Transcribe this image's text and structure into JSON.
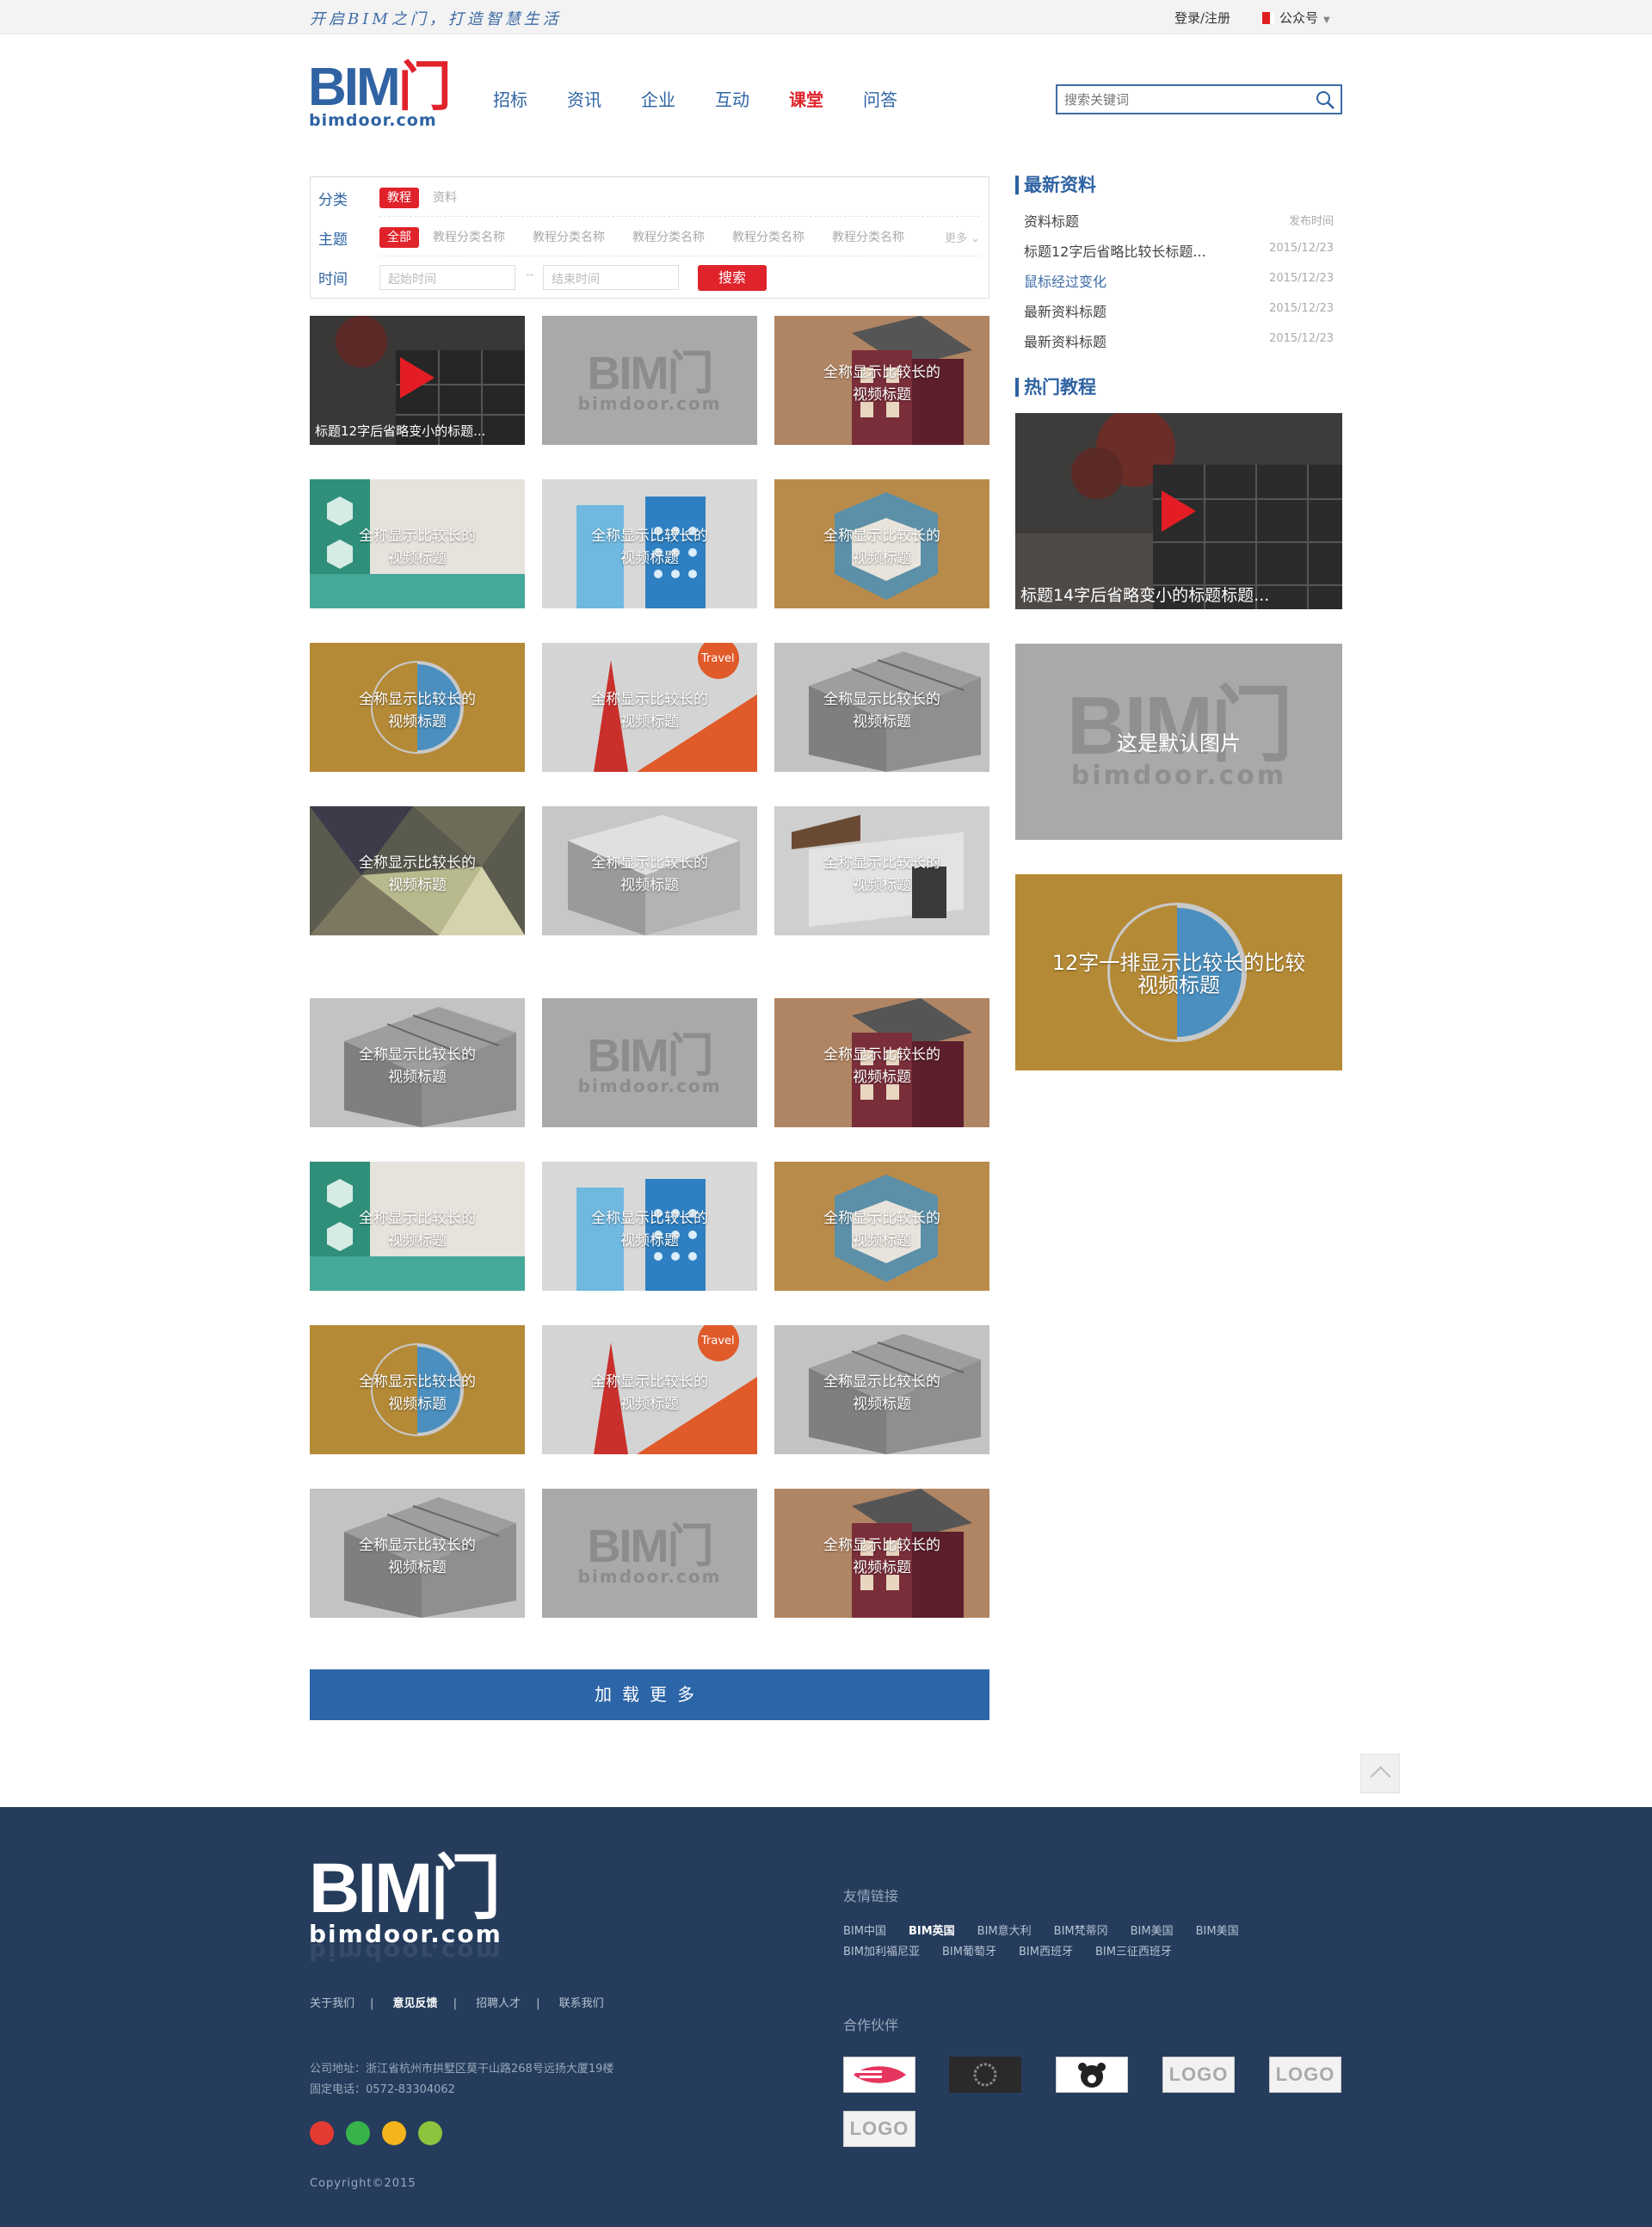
{
  "topbar": {
    "slogan": "开启BIM之门，打造智慧生活",
    "login": "登录/注册",
    "wechat": "公众号"
  },
  "logo": {
    "main": "BIM",
    "men": "门",
    "sub": "bimdoor.com"
  },
  "nav": [
    "招标",
    "资讯",
    "企业",
    "互动",
    "课堂",
    "问答"
  ],
  "nav_active": "课堂",
  "search": {
    "placeholder": "搜索关键词"
  },
  "filter": {
    "category_label": "分类",
    "categories": [
      "教程",
      "资料"
    ],
    "topic_label": "主题",
    "topics": [
      "全部",
      "教程分类名称",
      "教程分类名称",
      "教程分类名称",
      "教程分类名称",
      "教程分类名称"
    ],
    "more": "更多",
    "time_label": "时间",
    "start_placeholder": "起始时间",
    "dash": "--",
    "end_placeholder": "结束时间",
    "search_btn": "搜索"
  },
  "tiles": [
    {
      "kind": "video",
      "title": "标题12字后省略变小的标题..."
    },
    {
      "kind": "default",
      "title": ""
    },
    {
      "kind": "house",
      "title": "全称显示比较长的视频标题"
    },
    {
      "kind": "green",
      "title": "全称显示比较长的视频标题"
    },
    {
      "kind": "blue",
      "title": "全称显示比较长的视频标题"
    },
    {
      "kind": "room",
      "title": "全称显示比较长的视频标题"
    },
    {
      "kind": "yellow",
      "title": "全称显示比较长的视频标题"
    },
    {
      "kind": "travel",
      "title": "全称显示比较长的视频标题",
      "tag": "Travel"
    },
    {
      "kind": "grey",
      "title": "全称显示比较长的视频标题"
    },
    {
      "kind": "poly",
      "title": "全称显示比较长的视频标题"
    },
    {
      "kind": "grey2",
      "title": "全称显示比较长的视频标题"
    },
    {
      "kind": "grey3",
      "title": "全称显示比较长的视频标题"
    },
    {
      "kind": "grey",
      "title": "全称显示比较长的视频标题"
    },
    {
      "kind": "default",
      "title": ""
    },
    {
      "kind": "house",
      "title": "全称显示比较长的视频标题"
    },
    {
      "kind": "green",
      "title": "全称显示比较长的视频标题"
    },
    {
      "kind": "blue",
      "title": "全称显示比较长的视频标题"
    },
    {
      "kind": "room",
      "title": "全称显示比较长的视频标题"
    },
    {
      "kind": "yellow",
      "title": "全称显示比较长的视频标题"
    },
    {
      "kind": "travel",
      "title": "全称显示比较长的视频标题",
      "tag": "Travel"
    },
    {
      "kind": "grey",
      "title": "全称显示比较长的视频标题"
    },
    {
      "kind": "grey",
      "title": "全称显示比较长的视频标题"
    },
    {
      "kind": "default",
      "title": ""
    },
    {
      "kind": "house",
      "title": "全称显示比较长的视频标题"
    }
  ],
  "tile_title_lines": [
    "全称显示比较长的",
    "视频标题"
  ],
  "load_more": "加载更多",
  "sidebar": {
    "latest_title": "最新资料",
    "latest_header": {
      "title": "资料标题",
      "date": "发布时间"
    },
    "latest": [
      {
        "title": "标题12字后省略比较长标题...",
        "date": "2015/12/23",
        "hover": false
      },
      {
        "title": "鼠标经过变化",
        "date": "2015/12/23",
        "hover": true
      },
      {
        "title": "最新资料标题",
        "date": "2015/12/23",
        "hover": false
      },
      {
        "title": "最新资料标题",
        "date": "2015/12/23",
        "hover": false
      }
    ],
    "hot_title": "热门教程",
    "hot1": "标题14字后省略变小的标题标题...",
    "hot2": "这是默认图片",
    "hot3_lines": [
      "12字一排显示比较长的比较",
      "视频标题"
    ]
  },
  "footer": {
    "links": [
      "关于我们",
      "意见反馈",
      "招聘人才",
      "联系我们"
    ],
    "address": "公司地址：浙江省杭州市拱墅区莫干山路268号远扬大厦19楼",
    "phone": "固定电话：0572-83304062",
    "copyright": "Copyright©2015",
    "friend_title": "友情链接",
    "friends": [
      "BIM中国",
      "BIM英国",
      "BIM意大利",
      "BIM梵蒂冈",
      "BIM美国",
      "BIM美国",
      "BIM加利福尼亚",
      "BIM葡萄牙",
      "BIM西班牙",
      "BIM三征西班牙"
    ],
    "partner_title": "合作伙伴",
    "partners": [
      "",
      "",
      "",
      "LOGO",
      "LOGO",
      "LOGO"
    ]
  },
  "colors": {
    "brand_blue": "#2f63a3",
    "brand_red": "#e0232b",
    "footer_bg": "#253c5c"
  }
}
